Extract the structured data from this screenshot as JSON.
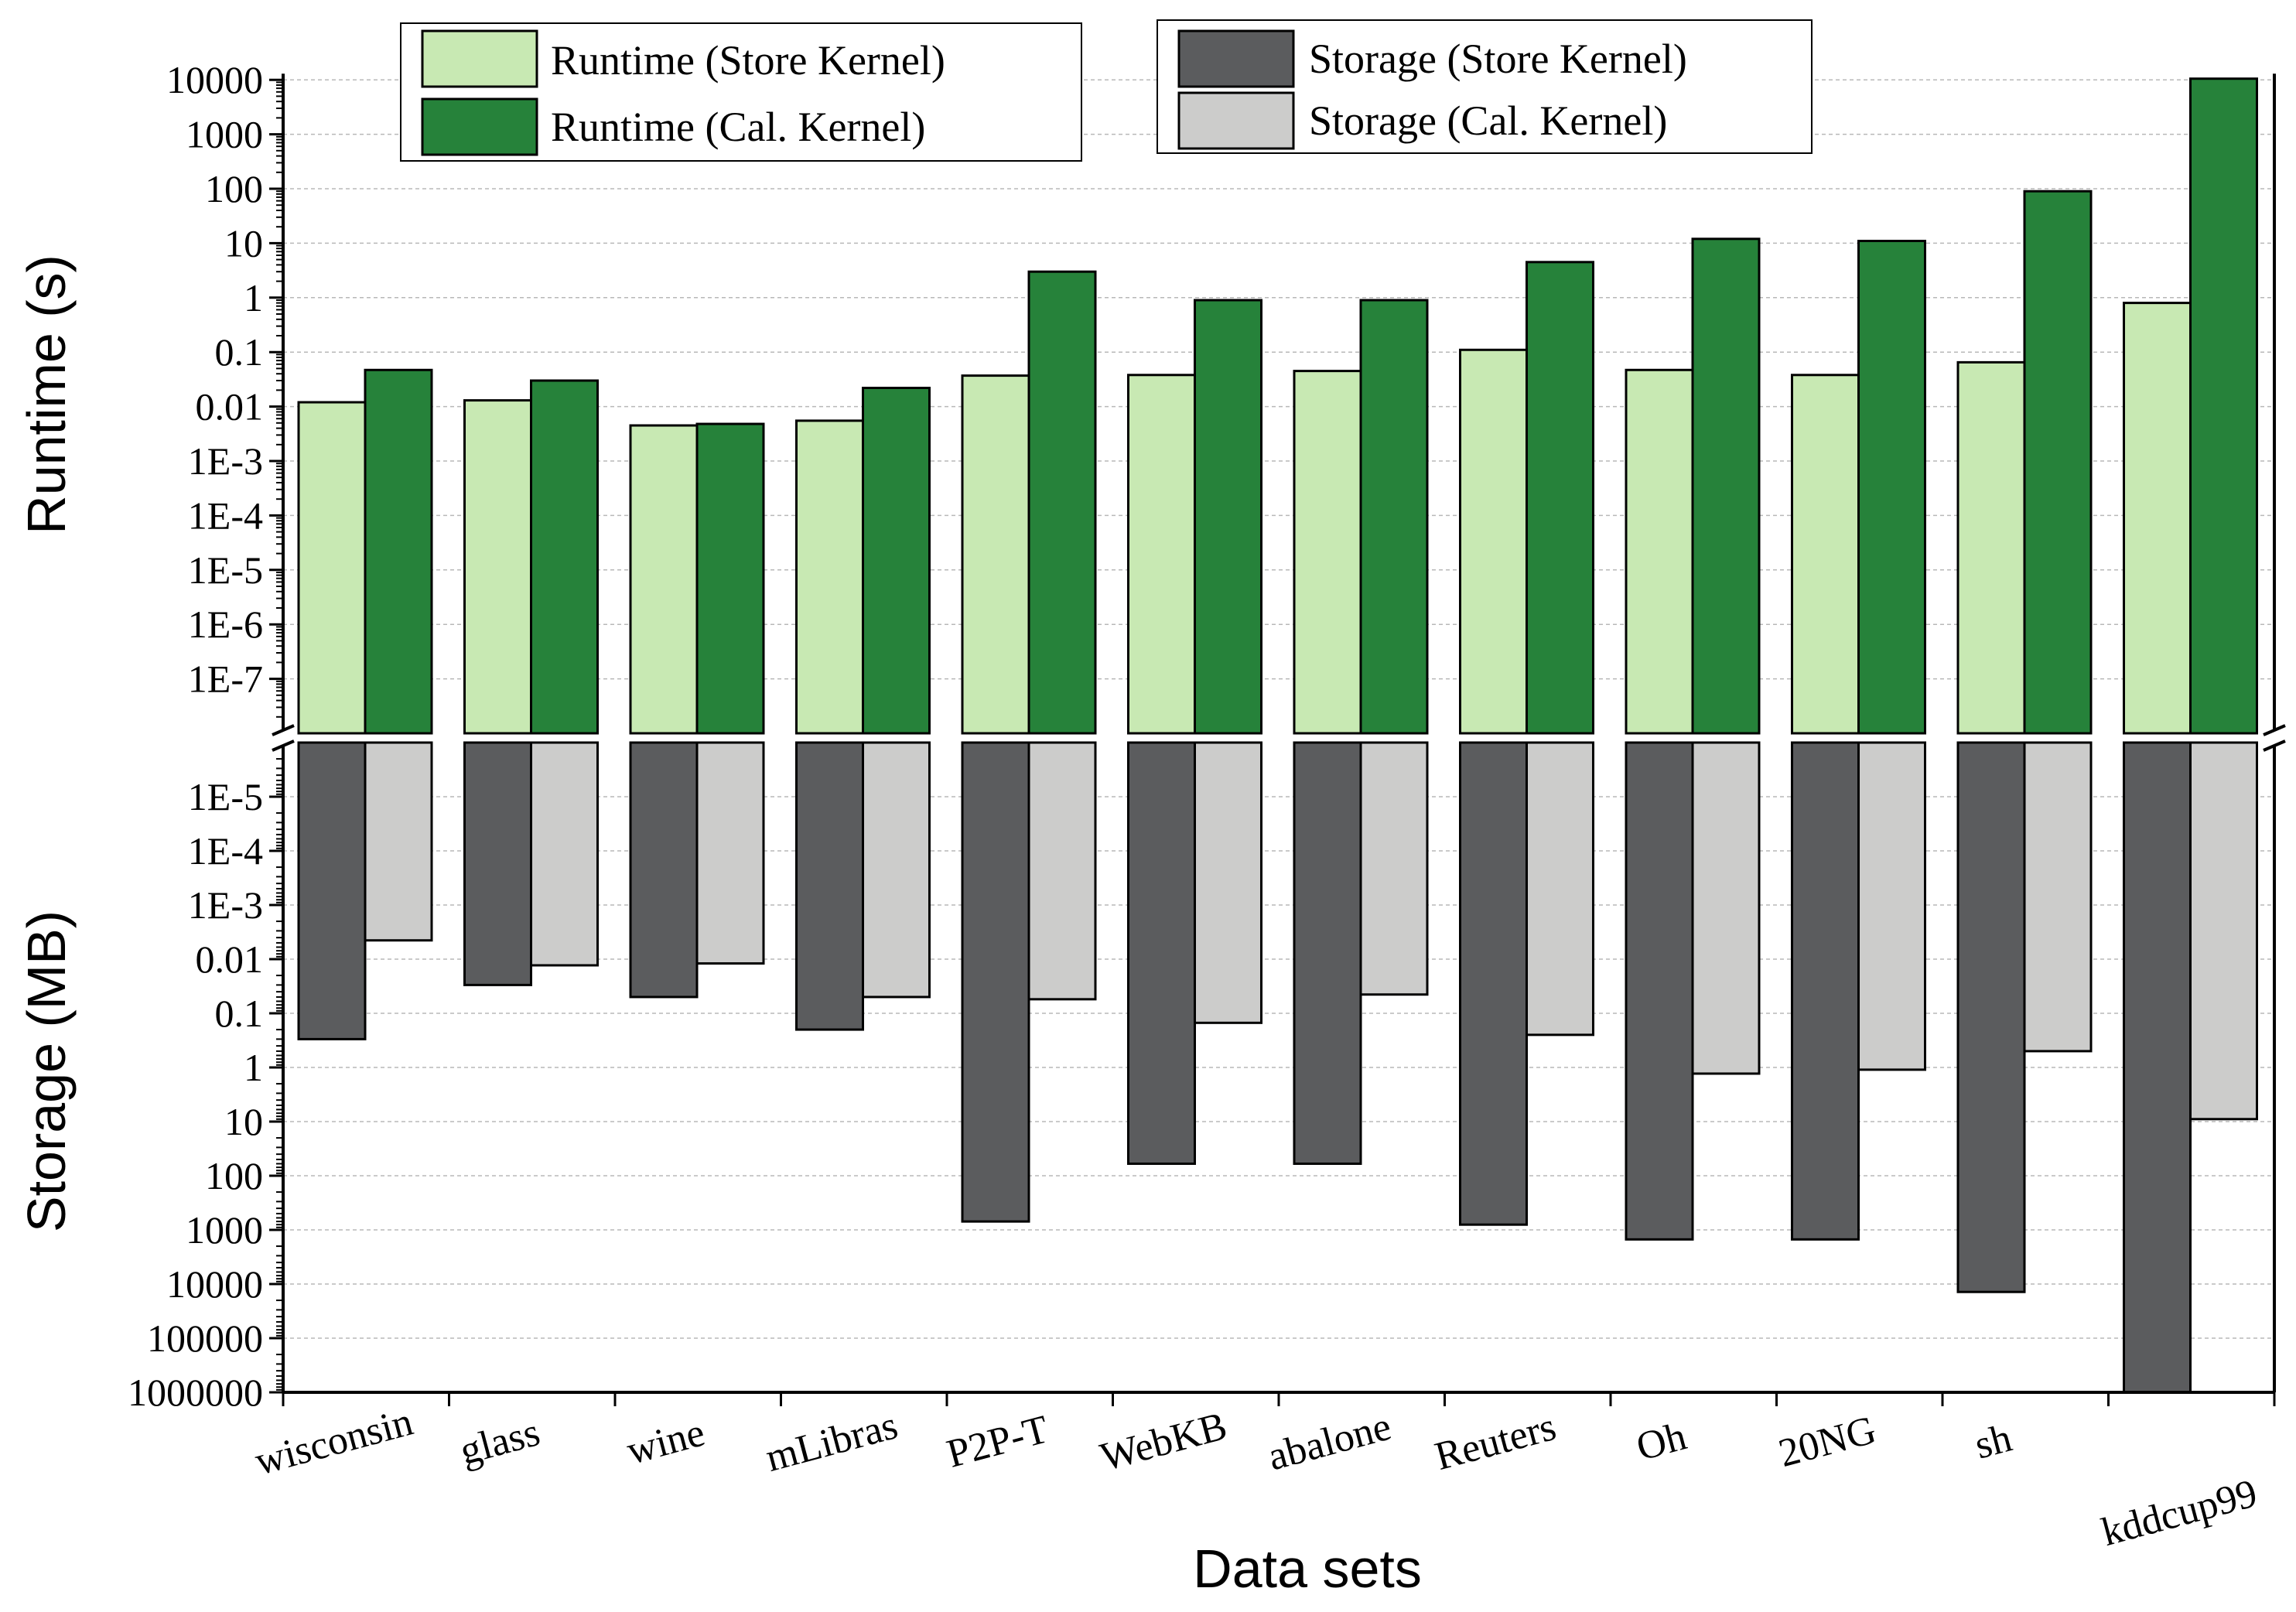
{
  "chart_data": {
    "type": "bar",
    "layout": "mirrored-log-bar",
    "categories": [
      "wisconsin",
      "glass",
      "wine",
      "mLibras",
      "P2P-T",
      "WebKB",
      "abalone",
      "Reuters",
      "Oh",
      "20NG",
      "sh",
      "kddcup99"
    ],
    "xlabel": "Data sets",
    "top_panel": {
      "ylabel": "Runtime (s)",
      "scale": "log",
      "ylim": [
        1e-08,
        10000
      ],
      "tick_labels": [
        "10000",
        "1000",
        "100",
        "10",
        "1",
        "0.1",
        "0.01",
        "1E-3",
        "1E-4",
        "1E-5",
        "1E-6",
        "1E-7"
      ],
      "series": [
        {
          "name": "Runtime (Store Kernel)",
          "color": "#c8e9b3",
          "values": [
            0.012,
            0.013,
            0.0045,
            0.0055,
            0.037,
            0.038,
            0.045,
            0.11,
            0.047,
            0.038,
            0.065,
            0.8
          ]
        },
        {
          "name": "Runtime (Cal. Kernel)",
          "color": "#26823a",
          "values": [
            0.047,
            0.03,
            0.0048,
            0.022,
            3.0,
            0.9,
            0.9,
            4.5,
            12,
            11,
            90,
            10500
          ]
        }
      ]
    },
    "bottom_panel": {
      "ylabel": "Storage (MB)",
      "scale": "log",
      "inverted": true,
      "ylim": [
        1e-06,
        1000000
      ],
      "tick_labels": [
        "1E-5",
        "1E-4",
        "1E-3",
        "0.01",
        "0.1",
        "1",
        "10",
        "100",
        "1000",
        "10000",
        "100000",
        "1000000"
      ],
      "series": [
        {
          "name": "Storage (Store Kernel)",
          "color": "#5b5c5e",
          "values": [
            0.3,
            0.03,
            0.05,
            0.2,
            700,
            60,
            60,
            800,
            1500,
            1500,
            14000,
            1000000
          ]
        },
        {
          "name": "Storage (Cal. Kernel)",
          "color": "#cccccb",
          "values": [
            0.0045,
            0.013,
            0.012,
            0.05,
            0.055,
            0.15,
            0.045,
            0.25,
            1.3,
            1.1,
            0.5,
            9
          ]
        }
      ]
    },
    "legend": [
      {
        "label": "Runtime (Store Kernel)",
        "color": "#c8e9b3"
      },
      {
        "label": "Runtime (Cal. Kernel)",
        "color": "#26823a"
      },
      {
        "label": "Storage (Store Kernel)",
        "color": "#5b5c5e"
      },
      {
        "label": "Storage (Cal. Kernel)",
        "color": "#cccccb"
      }
    ],
    "legend_position": "top"
  }
}
